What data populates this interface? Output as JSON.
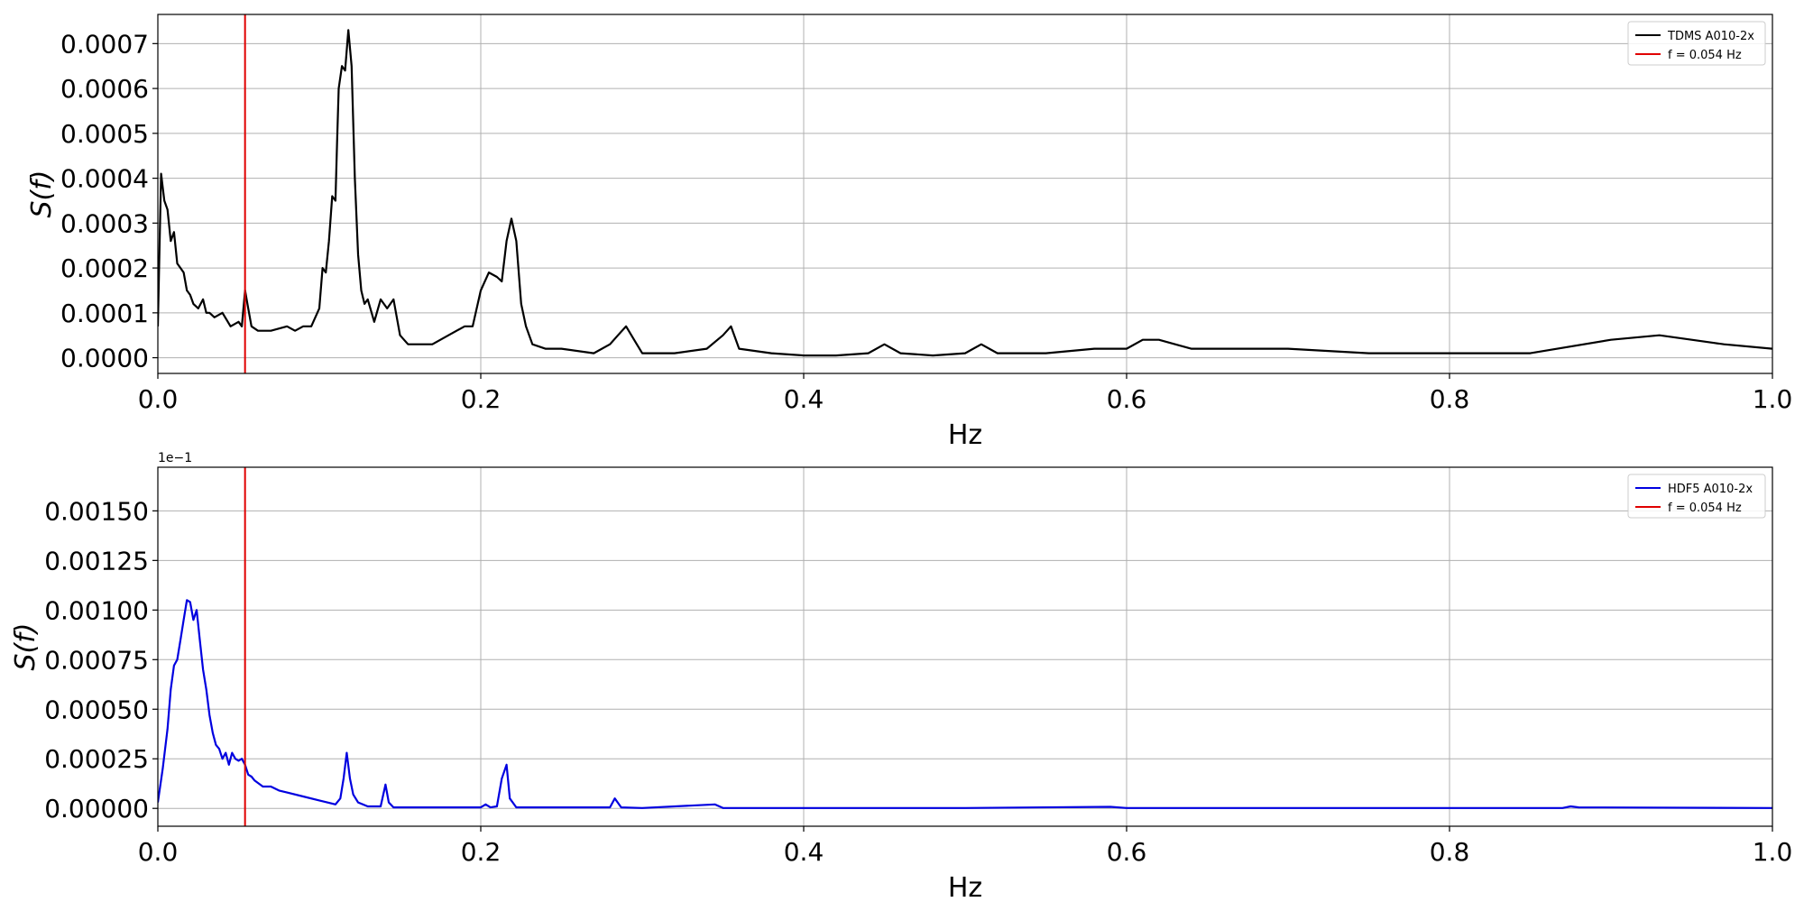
{
  "chart_data": [
    {
      "type": "line",
      "ylabel": "S(f)",
      "xlabel": "Hz",
      "xlim": [
        0,
        1.0
      ],
      "ylim": [
        -3.5e-05,
        0.000765
      ],
      "xticks": [
        0.0,
        0.2,
        0.4,
        0.6,
        0.8,
        1.0
      ],
      "xtick_labels": [
        "0.0",
        "0.2",
        "0.4",
        "0.6",
        "0.8",
        "1.0"
      ],
      "yticks": [
        0.0,
        0.0001,
        0.0002,
        0.0003,
        0.0004,
        0.0005,
        0.0006,
        0.0007
      ],
      "ytick_labels": [
        "0.0000",
        "0.0001",
        "0.0002",
        "0.0003",
        "0.0004",
        "0.0005",
        "0.0006",
        "0.0007"
      ],
      "grid": true,
      "legend_position": "top-right",
      "vline": {
        "x": 0.054,
        "name": "f = 0.054 Hz",
        "color": "#e00000"
      },
      "series": [
        {
          "name": "TDMS A010-2x",
          "color": "#000000",
          "x": [
            0.0,
            0.002,
            0.004,
            0.006,
            0.008,
            0.01,
            0.012,
            0.014,
            0.016,
            0.018,
            0.02,
            0.022,
            0.025,
            0.028,
            0.03,
            0.032,
            0.035,
            0.04,
            0.045,
            0.05,
            0.052,
            0.054,
            0.056,
            0.058,
            0.062,
            0.07,
            0.08,
            0.085,
            0.09,
            0.095,
            0.1,
            0.102,
            0.104,
            0.106,
            0.108,
            0.11,
            0.111,
            0.112,
            0.114,
            0.116,
            0.118,
            0.12,
            0.122,
            0.124,
            0.126,
            0.128,
            0.13,
            0.134,
            0.138,
            0.142,
            0.146,
            0.15,
            0.155,
            0.16,
            0.17,
            0.18,
            0.19,
            0.195,
            0.2,
            0.205,
            0.21,
            0.213,
            0.216,
            0.219,
            0.222,
            0.225,
            0.228,
            0.232,
            0.24,
            0.25,
            0.27,
            0.28,
            0.285,
            0.29,
            0.295,
            0.3,
            0.32,
            0.34,
            0.35,
            0.355,
            0.36,
            0.38,
            0.4,
            0.42,
            0.44,
            0.45,
            0.46,
            0.48,
            0.5,
            0.51,
            0.52,
            0.55,
            0.58,
            0.6,
            0.61,
            0.62,
            0.64,
            0.66,
            0.7,
            0.75,
            0.8,
            0.85,
            0.9,
            0.93,
            0.95,
            0.97,
            1.0
          ],
          "y": [
            7e-05,
            0.00041,
            0.00035,
            0.00033,
            0.00026,
            0.00028,
            0.00021,
            0.0002,
            0.00019,
            0.00015,
            0.00014,
            0.00012,
            0.00011,
            0.00013,
            0.0001,
            0.0001,
            9e-05,
            0.0001,
            7e-05,
            8e-05,
            7e-05,
            0.00015,
            0.00011,
            7e-05,
            6e-05,
            6e-05,
            7e-05,
            6e-05,
            7e-05,
            7e-05,
            0.00011,
            0.0002,
            0.00019,
            0.00026,
            0.00036,
            0.00035,
            0.00048,
            0.0006,
            0.00065,
            0.00064,
            0.00073,
            0.00065,
            0.0004,
            0.00023,
            0.00015,
            0.00012,
            0.00013,
            8e-05,
            0.00013,
            0.00011,
            0.00013,
            5e-05,
            3e-05,
            3e-05,
            3e-05,
            5e-05,
            7e-05,
            7e-05,
            0.00015,
            0.00019,
            0.00018,
            0.00017,
            0.00026,
            0.00031,
            0.00026,
            0.00012,
            7e-05,
            3e-05,
            2e-05,
            2e-05,
            1e-05,
            3e-05,
            5e-05,
            7e-05,
            4e-05,
            1e-05,
            1e-05,
            2e-05,
            5e-05,
            7e-05,
            2e-05,
            1e-05,
            5e-06,
            5e-06,
            1e-05,
            3e-05,
            1e-05,
            5e-06,
            1e-05,
            3e-05,
            1e-05,
            1e-05,
            2e-05,
            2e-05,
            4e-05,
            4e-05,
            2e-05,
            2e-05,
            2e-05,
            1e-05,
            1e-05,
            1e-05,
            4e-05,
            5e-05,
            4e-05,
            3e-05,
            2e-05
          ]
        }
      ]
    },
    {
      "type": "line",
      "ylabel": "S(f)",
      "xlabel": "Hz",
      "offset_text": "1e−1",
      "xlim": [
        0,
        1.0
      ],
      "ylim": [
        -9e-05,
        0.00172
      ],
      "xticks": [
        0.0,
        0.2,
        0.4,
        0.6,
        0.8,
        1.0
      ],
      "xtick_labels": [
        "0.0",
        "0.2",
        "0.4",
        "0.6",
        "0.8",
        "1.0"
      ],
      "yticks": [
        0.0,
        0.00025,
        0.0005,
        0.00075,
        0.001,
        0.00125,
        0.0015
      ],
      "ytick_labels": [
        "0.00000",
        "0.00025",
        "0.00050",
        "0.00075",
        "0.00100",
        "0.00125",
        "0.00150"
      ],
      "grid": true,
      "legend_position": "top-right",
      "vline": {
        "x": 0.054,
        "name": "f = 0.054 Hz",
        "color": "#e00000"
      },
      "series": [
        {
          "name": "HDF5 A010-2x",
          "color": "#0000e0",
          "x": [
            0.0,
            0.003,
            0.006,
            0.008,
            0.01,
            0.012,
            0.014,
            0.016,
            0.018,
            0.02,
            0.022,
            0.024,
            0.026,
            0.028,
            0.03,
            0.032,
            0.034,
            0.036,
            0.038,
            0.04,
            0.042,
            0.044,
            0.046,
            0.048,
            0.05,
            0.052,
            0.054,
            0.056,
            0.058,
            0.06,
            0.065,
            0.07,
            0.075,
            0.08,
            0.09,
            0.1,
            0.11,
            0.113,
            0.115,
            0.117,
            0.119,
            0.121,
            0.124,
            0.13,
            0.138,
            0.141,
            0.143,
            0.146,
            0.15,
            0.2,
            0.203,
            0.206,
            0.21,
            0.213,
            0.216,
            0.218,
            0.222,
            0.24,
            0.28,
            0.283,
            0.287,
            0.3,
            0.345,
            0.35,
            0.4,
            0.5,
            0.59,
            0.6,
            0.7,
            0.8,
            0.87,
            0.875,
            0.88,
            1.0
          ],
          "y": [
            3e-05,
            0.0002,
            0.0004,
            0.0006,
            0.00072,
            0.00075,
            0.00085,
            0.00095,
            0.00105,
            0.00104,
            0.00095,
            0.001,
            0.00085,
            0.0007,
            0.0006,
            0.00047,
            0.00038,
            0.00032,
            0.0003,
            0.00025,
            0.00028,
            0.00022,
            0.00028,
            0.00025,
            0.00024,
            0.00025,
            0.00022,
            0.00017,
            0.00016,
            0.00014,
            0.00011,
            0.00011,
            9e-05,
            8e-05,
            6e-05,
            4e-05,
            2e-05,
            5e-05,
            0.00015,
            0.00028,
            0.00015,
            7e-05,
            3e-05,
            1e-05,
            1e-05,
            0.00012,
            3e-05,
            5e-06,
            5e-06,
            5e-06,
            2e-05,
            5e-06,
            1e-05,
            0.00015,
            0.00022,
            5e-05,
            5e-06,
            5e-06,
            5e-06,
            5e-05,
            5e-06,
            2e-06,
            2e-05,
            2e-06,
            2e-06,
            2e-06,
            8e-06,
            2e-06,
            2e-06,
            2e-06,
            2e-06,
            1e-05,
            5e-06,
            2e-06
          ]
        }
      ]
    }
  ]
}
